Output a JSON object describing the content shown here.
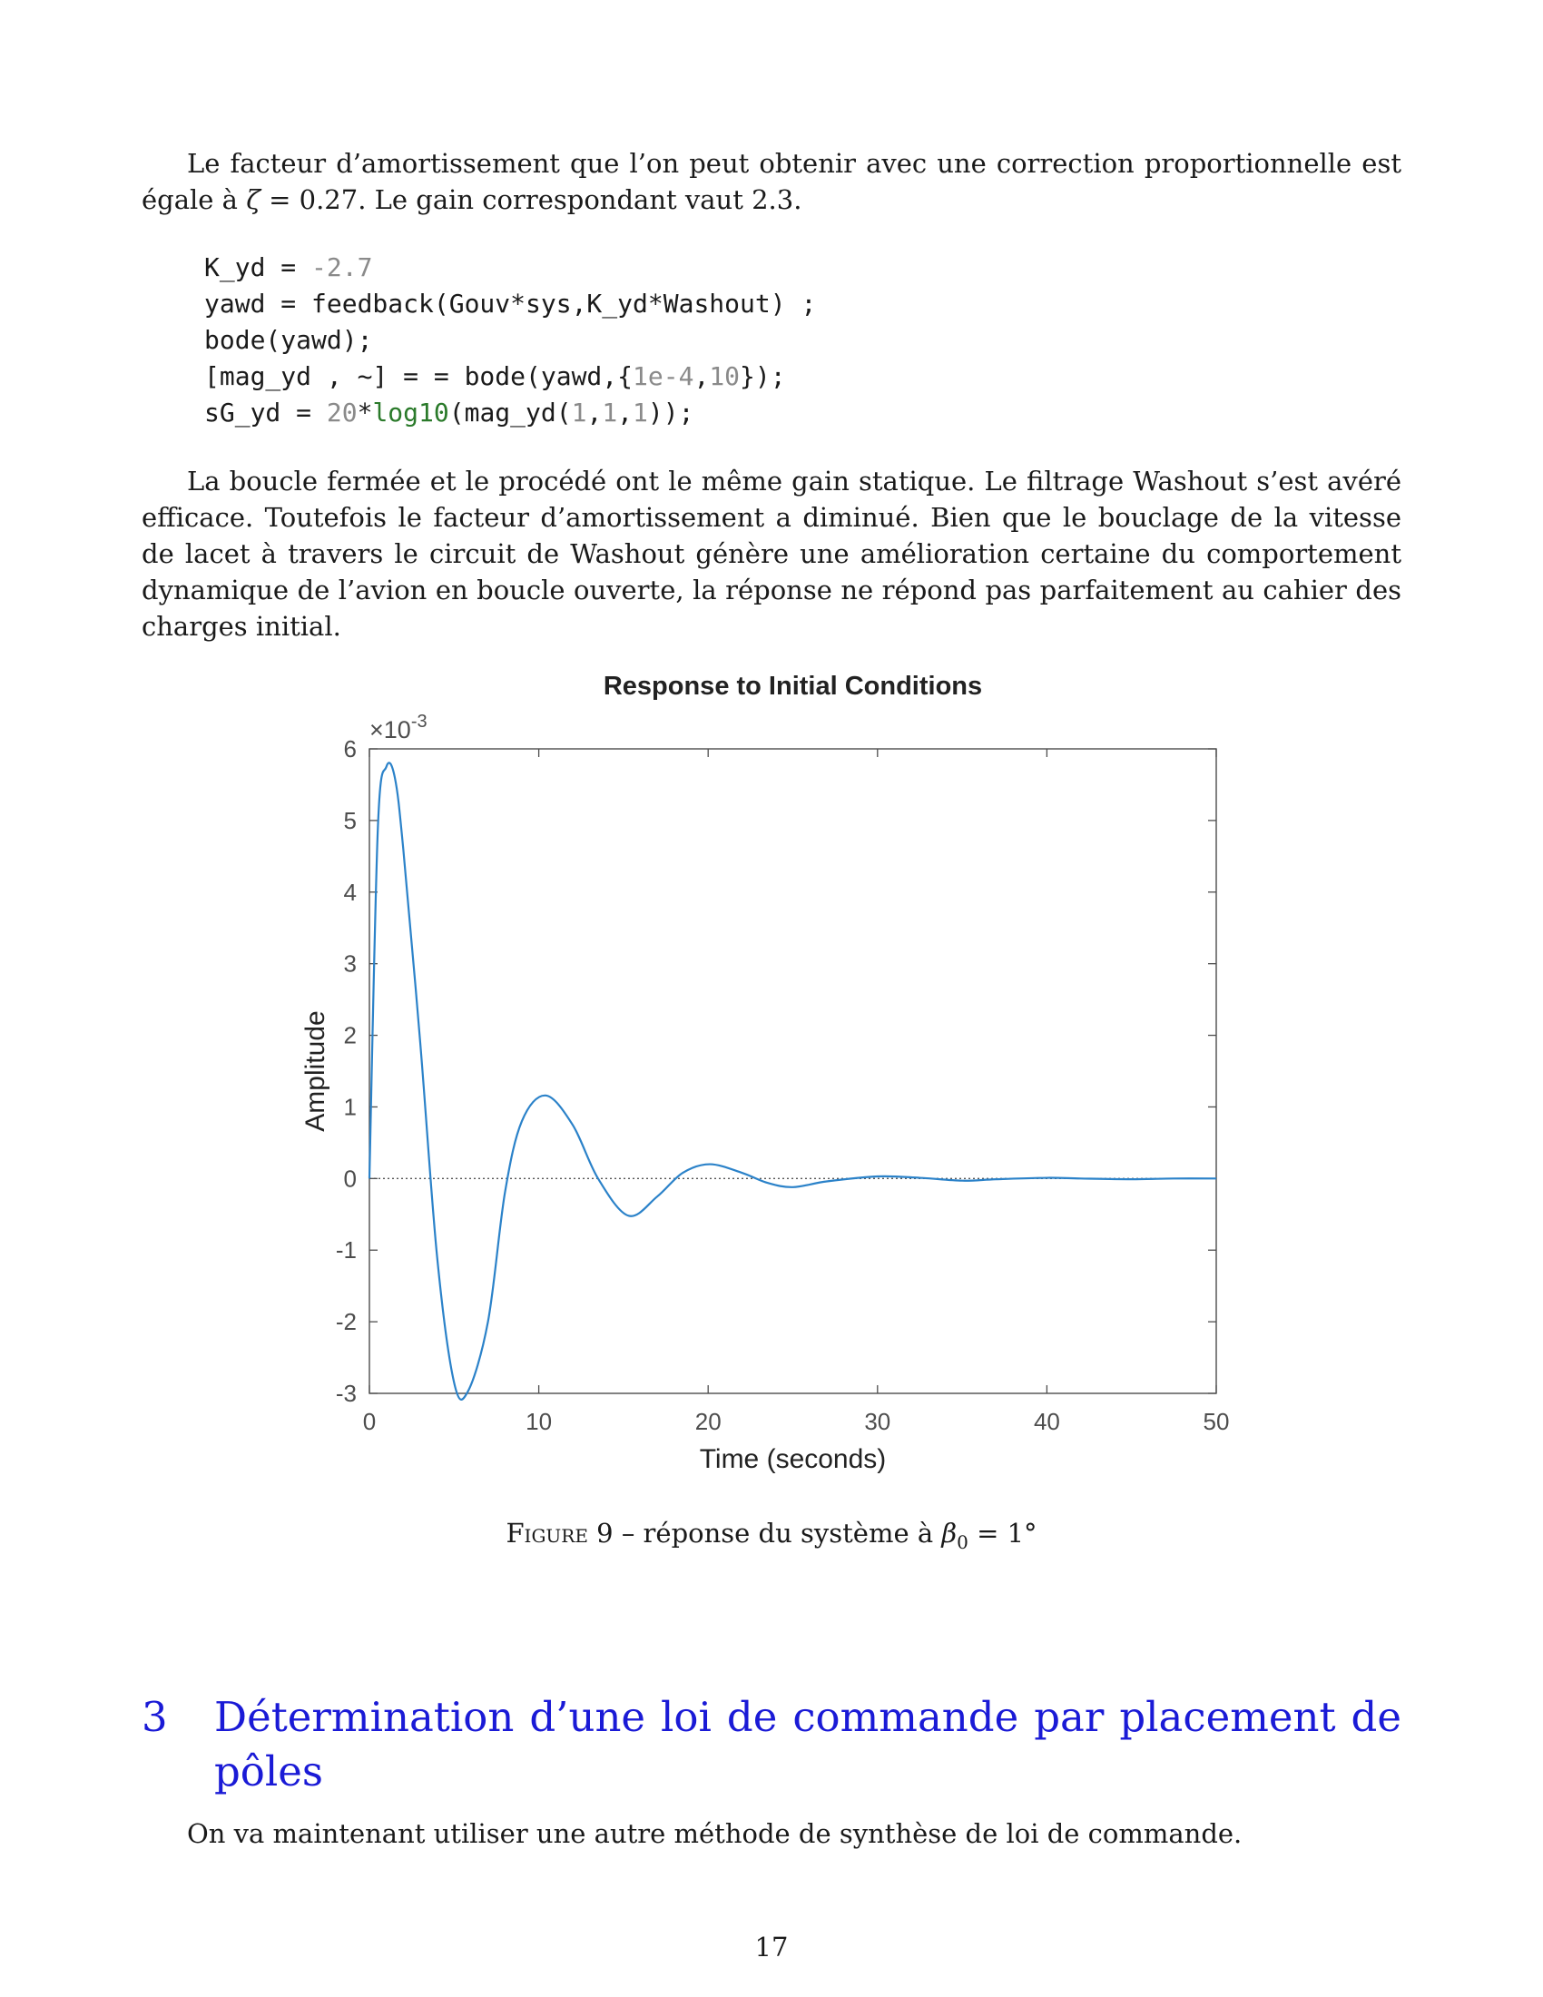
{
  "paragraphs": {
    "p1": {
      "text_a": "Le facteur d’amortissement que l’on peut obtenir avec une correction proportionnelle est égale à ",
      "zeta_symbol": "ζ",
      "text_b": " = 0.27. Le gain correspondant vaut 2.3."
    },
    "p2": "La boucle fermée et le procédé ont le même gain statique. Le filtrage Washout s’est avéré efficace. Toutefois le facteur d’amortissement a diminué. Bien que le bouclage de la vitesse de lacet à travers le circuit de Washout génère une amélioration certaine du comportement dynamique de l’avion en boucle ouverte, la réponse ne répond pas parfaitement au cahier des charges initial.",
    "p3": "On va maintenant utiliser une autre méthode de synthèse de loi de commande."
  },
  "code": {
    "l1_a": "K_yd = ",
    "l1_num": "-2.7",
    "l2": "yawd = feedback(Gouv*sys,K_yd*Washout) ;",
    "l3": "bode(yawd);",
    "l4_a": "[mag_yd , ~] = = bode(yawd,{",
    "l4_n1": "1e-4",
    "l4_b": ",",
    "l4_n2": "10",
    "l4_c": "});",
    "l5_a": "sG_yd = ",
    "l5_n1": "20",
    "l5_b": "*",
    "l5_fn": "log10",
    "l5_c": "(mag_yd(",
    "l5_n2": "1",
    "l5_d": ",",
    "l5_n3": "1",
    "l5_e": ",",
    "l5_n4": "1",
    "l5_f": "));"
  },
  "chart_data": {
    "type": "line",
    "title": "Response to Initial Conditions",
    "xlabel": "Time (seconds)",
    "ylabel": "Amplitude",
    "exponent_label": "×10",
    "exponent_power": "-3",
    "xlim": [
      0,
      50
    ],
    "ylim": [
      -3,
      6
    ],
    "xticks": [
      "0",
      "10",
      "20",
      "30",
      "40",
      "50"
    ],
    "yticks": [
      "-3",
      "-2",
      "-1",
      "0",
      "1",
      "2",
      "3",
      "4",
      "5",
      "6"
    ],
    "y_scale": 0.001,
    "line_color": "#2b82c9",
    "series": [
      {
        "x": [
          0,
          0.5,
          1.0,
          1.5,
          2.0,
          3.0,
          4.0,
          5.0,
          5.8,
          7.0,
          8.0,
          9.0,
          10.4,
          12.0,
          13.5,
          15.3,
          17.0,
          18.5,
          20.1,
          22.0,
          23.5,
          25.0,
          27.0,
          30.0,
          32.5,
          35.0,
          37.0,
          40.0,
          42.0,
          45.0,
          47.5,
          50.0
        ],
        "y": [
          0.0,
          4.9,
          5.75,
          5.6,
          4.6,
          1.9,
          -1.1,
          -2.85,
          -2.98,
          -2.0,
          -0.2,
          0.8,
          1.16,
          0.75,
          0.0,
          -0.52,
          -0.25,
          0.08,
          0.2,
          0.08,
          -0.06,
          -0.12,
          -0.04,
          0.03,
          0.01,
          -0.03,
          -0.01,
          0.01,
          0.0,
          -0.01,
          0.0,
          0.0
        ]
      }
    ],
    "zero_line": true,
    "grid": false
  },
  "figure_caption": {
    "label": "Figure 9",
    "text_a": " – réponse du système à ",
    "beta": "β",
    "beta_sub": "0",
    "text_b": " = 1°"
  },
  "section": {
    "number": "3",
    "title": "Détermination d’une loi de commande par placement de pôles"
  },
  "page_number": "17"
}
